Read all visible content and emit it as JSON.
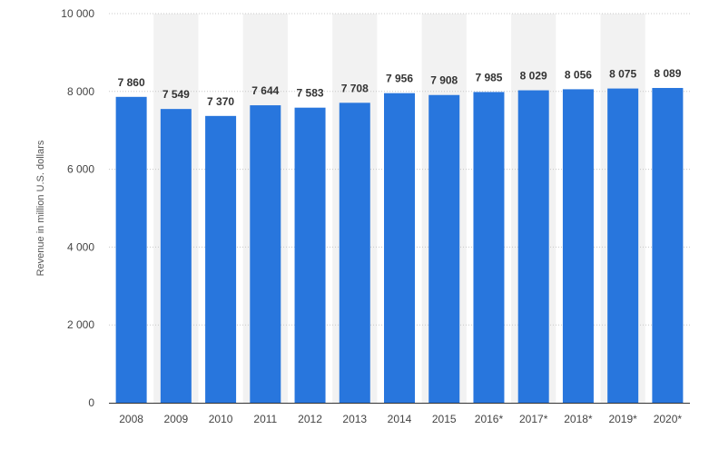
{
  "chart_data": {
    "type": "bar",
    "title": "",
    "xlabel": "",
    "ylabel": "Revenue in million U.S. dollars",
    "ylim": [
      0,
      10000
    ],
    "yticks": [
      0,
      2000,
      4000,
      6000,
      8000,
      10000
    ],
    "ytick_labels": [
      "0",
      "2 000",
      "4 000",
      "6 000",
      "8 000",
      "10 000"
    ],
    "grid": "horizontal dotted",
    "legend": "none",
    "categories": [
      "2008",
      "2009",
      "2010",
      "2011",
      "2012",
      "2013",
      "2014",
      "2015",
      "2016*",
      "2017*",
      "2018*",
      "2019*",
      "2020*"
    ],
    "values": [
      7860,
      7549,
      7370,
      7644,
      7583,
      7708,
      7956,
      7908,
      7985,
      8029,
      8056,
      8075,
      8089
    ],
    "value_labels": [
      "7 860",
      "7 549",
      "7 370",
      "7 644",
      "7 583",
      "7 708",
      "7 956",
      "7 908",
      "7 985",
      "8 029",
      "8 056",
      "8 075",
      "8 089"
    ],
    "colors": {
      "bar": "#2876dd",
      "band": "#f2f2f2",
      "grid": "#c8c8c8",
      "axis": "#333333"
    }
  }
}
